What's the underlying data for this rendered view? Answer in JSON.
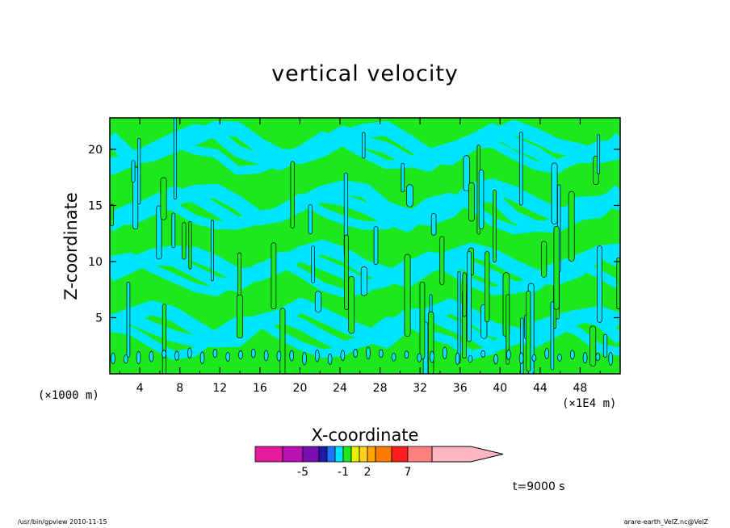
{
  "chart_data": {
    "type": "heatmap",
    "title": "vertical velocity",
    "xlabel": "X-coordinate",
    "ylabel": "Z-coordinate",
    "x_unit_left": "(×1000 m)",
    "x_unit_right": "(×1E4 m)",
    "x_ticks": [
      4,
      8,
      12,
      16,
      20,
      24,
      28,
      32,
      36,
      40,
      44,
      48
    ],
    "y_ticks": [
      5,
      10,
      15,
      20
    ],
    "xlim": [
      1,
      52
    ],
    "ylim": [
      0,
      22.8
    ],
    "colorbar": {
      "labels": [
        {
          "text": "-5",
          "at": -5
        },
        {
          "text": "-1",
          "at": -1
        },
        {
          "text": "2",
          "at": 2
        },
        {
          "text": "7",
          "at": 7
        }
      ],
      "colors": [
        "#e41a9c",
        "#b811b4",
        "#7a0fb0",
        "#1c1aa8",
        "#1e73ff",
        "#00e5ff",
        "#1de81d",
        "#e8f000",
        "#ffd21e",
        "#ffa500",
        "#ff7a00",
        "#ff1e1e",
        "#ff8080",
        "#ffb6c1"
      ],
      "levels": [
        -12,
        -7,
        -5,
        -4,
        -3,
        -2,
        -1,
        0,
        1,
        2,
        3,
        4,
        7,
        10
      ]
    },
    "time_label": "t=9000 s",
    "footer_left": "/usr/bin/gpview   2010-11-15",
    "footer_right": "arare-earth_VelZ.nc@VelZ"
  }
}
